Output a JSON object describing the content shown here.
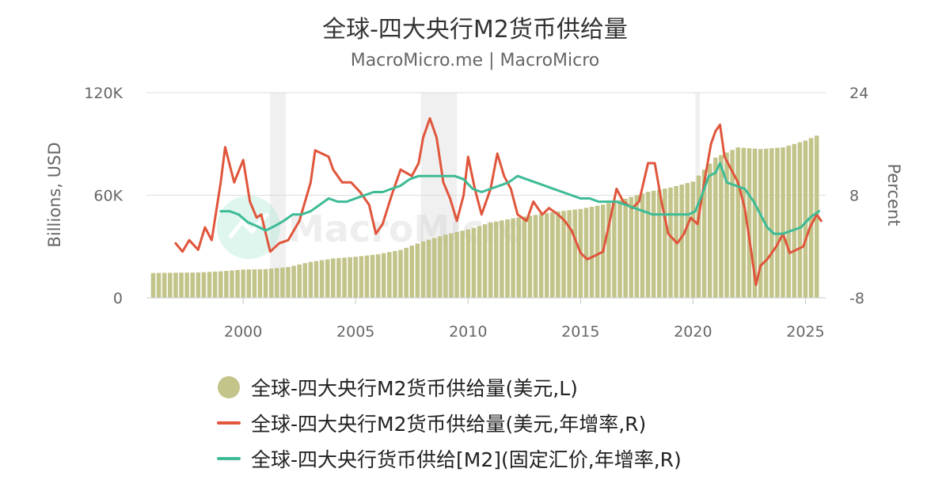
{
  "header": {
    "title": "全球-四大央行M2货币供给量",
    "subtitle": "MacroMicro.me | MacroMicro"
  },
  "watermark": "MacroMicro",
  "colors": {
    "bars": "#c2c48a",
    "usd_yoy": "#e0553b",
    "fixed_fx_yoy": "#3dbb96",
    "recession_band": "#f0f0f0",
    "grid": "#dddddd",
    "axis_text": "#666666"
  },
  "chart_data": {
    "type": "bar+line",
    "x_range": [
      1995.7,
      2025.9
    ],
    "x_ticks": [
      "2000",
      "2005",
      "2010",
      "2015",
      "2020",
      "2025"
    ],
    "left_axis": {
      "label": "Billions, USD",
      "ticks": [
        "120K",
        "60K",
        "0"
      ],
      "ylim": [
        0,
        120000
      ]
    },
    "right_axis": {
      "label": "Percent",
      "ticks": [
        "24",
        "8",
        "-8"
      ],
      "ylim": [
        -8,
        24
      ]
    },
    "grid": true,
    "legend_position": "bottom",
    "recession_bands": [
      [
        2001.2,
        2001.9
      ],
      [
        2007.9,
        2009.5
      ],
      [
        2020.1,
        2020.3
      ]
    ],
    "series": [
      {
        "name": "全球-四大央行M2货币供给量(美元,L)",
        "kind": "bar",
        "axis": "left",
        "points": [
          [
            1996.0,
            14500
          ],
          [
            1997.0,
            14700
          ],
          [
            1998.0,
            14800
          ],
          [
            1999.0,
            15500
          ],
          [
            2000.0,
            16500
          ],
          [
            2001.0,
            16800
          ],
          [
            2002.0,
            18000
          ],
          [
            2003.0,
            21000
          ],
          [
            2004.0,
            23000
          ],
          [
            2005.0,
            24000
          ],
          [
            2006.0,
            25500
          ],
          [
            2007.0,
            28000
          ],
          [
            2008.0,
            33000
          ],
          [
            2009.0,
            37000
          ],
          [
            2010.0,
            40000
          ],
          [
            2011.0,
            44000
          ],
          [
            2012.0,
            46500
          ],
          [
            2013.0,
            48500
          ],
          [
            2014.0,
            50500
          ],
          [
            2015.0,
            52000
          ],
          [
            2016.0,
            54500
          ],
          [
            2017.0,
            58000
          ],
          [
            2018.0,
            62000
          ],
          [
            2019.0,
            64500
          ],
          [
            2020.0,
            68000
          ],
          [
            2021.0,
            82000
          ],
          [
            2022.0,
            88000
          ],
          [
            2023.0,
            87000
          ],
          [
            2024.0,
            88000
          ],
          [
            2025.0,
            92000
          ],
          [
            2025.7,
            96000
          ]
        ]
      },
      {
        "name": "全球-四大央行M2货币供给量(美元,年增率,R)",
        "kind": "line",
        "axis": "right",
        "points": [
          [
            1997.0,
            0.5
          ],
          [
            1997.3,
            -0.8
          ],
          [
            1997.6,
            1
          ],
          [
            1998.0,
            -0.5
          ],
          [
            1998.3,
            3
          ],
          [
            1998.6,
            1
          ],
          [
            1999.0,
            10
          ],
          [
            1999.2,
            15.5
          ],
          [
            1999.6,
            10
          ],
          [
            2000.0,
            13.5
          ],
          [
            2000.3,
            7
          ],
          [
            2000.6,
            4.5
          ],
          [
            2000.8,
            5
          ],
          [
            2001.2,
            -0.8
          ],
          [
            2001.6,
            0.5
          ],
          [
            2002.0,
            1
          ],
          [
            2002.5,
            4
          ],
          [
            2003.0,
            10
          ],
          [
            2003.2,
            15
          ],
          [
            2003.5,
            14.5
          ],
          [
            2003.8,
            14
          ],
          [
            2004.0,
            12
          ],
          [
            2004.4,
            10
          ],
          [
            2004.8,
            10
          ],
          [
            2005.2,
            8.5
          ],
          [
            2005.6,
            6.5
          ],
          [
            2005.9,
            2
          ],
          [
            2006.2,
            3.5
          ],
          [
            2006.6,
            8
          ],
          [
            2007.0,
            12
          ],
          [
            2007.5,
            11
          ],
          [
            2007.8,
            13
          ],
          [
            2008.0,
            17
          ],
          [
            2008.3,
            20
          ],
          [
            2008.6,
            17
          ],
          [
            2008.9,
            10
          ],
          [
            2009.2,
            7.5
          ],
          [
            2009.5,
            4
          ],
          [
            2009.8,
            8
          ],
          [
            2010.0,
            14
          ],
          [
            2010.3,
            9
          ],
          [
            2010.6,
            5
          ],
          [
            2011.0,
            9
          ],
          [
            2011.3,
            14.5
          ],
          [
            2011.6,
            11
          ],
          [
            2011.9,
            9
          ],
          [
            2012.2,
            5
          ],
          [
            2012.6,
            4
          ],
          [
            2012.9,
            7
          ],
          [
            2013.3,
            5
          ],
          [
            2013.6,
            6
          ],
          [
            2014.0,
            5
          ],
          [
            2014.3,
            4
          ],
          [
            2014.6,
            2.5
          ],
          [
            2015.0,
            -1
          ],
          [
            2015.3,
            -2
          ],
          [
            2015.6,
            -1.5
          ],
          [
            2016.0,
            -0.8
          ],
          [
            2016.3,
            4
          ],
          [
            2016.6,
            9
          ],
          [
            2016.9,
            7
          ],
          [
            2017.3,
            6
          ],
          [
            2017.6,
            7
          ],
          [
            2018.0,
            13
          ],
          [
            2018.3,
            13
          ],
          [
            2018.6,
            7
          ],
          [
            2018.9,
            2
          ],
          [
            2019.3,
            0.5
          ],
          [
            2019.6,
            2
          ],
          [
            2019.9,
            4.5
          ],
          [
            2020.2,
            3.5
          ],
          [
            2020.5,
            10
          ],
          [
            2020.8,
            16
          ],
          [
            2021.0,
            18
          ],
          [
            2021.2,
            19
          ],
          [
            2021.4,
            14
          ],
          [
            2021.7,
            12
          ],
          [
            2022.0,
            10
          ],
          [
            2022.3,
            6
          ],
          [
            2022.6,
            -1
          ],
          [
            2022.8,
            -6
          ],
          [
            2023.0,
            -3
          ],
          [
            2023.3,
            -2
          ],
          [
            2023.7,
            0
          ],
          [
            2024.0,
            2
          ],
          [
            2024.3,
            -1
          ],
          [
            2024.6,
            -0.5
          ],
          [
            2024.9,
            0
          ],
          [
            2025.2,
            3
          ],
          [
            2025.5,
            5
          ],
          [
            2025.7,
            4
          ]
        ]
      },
      {
        "name": "全球-四大央行货币供给[M2](固定汇价,年增率,R)",
        "kind": "line",
        "axis": "right",
        "points": [
          [
            1999.0,
            5.5
          ],
          [
            1999.4,
            5.5
          ],
          [
            1999.8,
            5
          ],
          [
            2000.2,
            3.8
          ],
          [
            2000.6,
            3.2
          ],
          [
            2001.0,
            2.5
          ],
          [
            2001.4,
            3.2
          ],
          [
            2001.8,
            4
          ],
          [
            2002.2,
            5
          ],
          [
            2002.6,
            5
          ],
          [
            2003.0,
            5.5
          ],
          [
            2003.4,
            6.5
          ],
          [
            2003.8,
            7.5
          ],
          [
            2004.2,
            7
          ],
          [
            2004.6,
            7
          ],
          [
            2005.0,
            7.5
          ],
          [
            2005.4,
            8
          ],
          [
            2005.8,
            8.5
          ],
          [
            2006.2,
            8.5
          ],
          [
            2006.6,
            9
          ],
          [
            2007.0,
            9.5
          ],
          [
            2007.4,
            10.5
          ],
          [
            2007.8,
            11
          ],
          [
            2008.2,
            11
          ],
          [
            2008.6,
            11
          ],
          [
            2009.0,
            11
          ],
          [
            2009.4,
            11
          ],
          [
            2009.8,
            10.5
          ],
          [
            2010.2,
            9
          ],
          [
            2010.6,
            8.5
          ],
          [
            2011.0,
            9
          ],
          [
            2011.4,
            9.5
          ],
          [
            2011.8,
            10
          ],
          [
            2012.2,
            11
          ],
          [
            2012.6,
            10.5
          ],
          [
            2013.0,
            10
          ],
          [
            2013.4,
            9.5
          ],
          [
            2013.8,
            9
          ],
          [
            2014.2,
            8.5
          ],
          [
            2014.6,
            8
          ],
          [
            2015.0,
            7.5
          ],
          [
            2015.4,
            7.5
          ],
          [
            2015.8,
            7
          ],
          [
            2016.2,
            7
          ],
          [
            2016.6,
            7
          ],
          [
            2017.0,
            6.5
          ],
          [
            2017.4,
            6
          ],
          [
            2017.8,
            5.5
          ],
          [
            2018.2,
            5
          ],
          [
            2018.6,
            5
          ],
          [
            2019.0,
            5
          ],
          [
            2019.4,
            5
          ],
          [
            2019.8,
            5
          ],
          [
            2020.1,
            5.5
          ],
          [
            2020.4,
            8
          ],
          [
            2020.7,
            11
          ],
          [
            2021.0,
            11.5
          ],
          [
            2021.2,
            13
          ],
          [
            2021.5,
            10
          ],
          [
            2021.9,
            9.5
          ],
          [
            2022.3,
            9
          ],
          [
            2022.7,
            7
          ],
          [
            2023.0,
            5
          ],
          [
            2023.3,
            3
          ],
          [
            2023.6,
            2
          ],
          [
            2024.0,
            2
          ],
          [
            2024.4,
            2.5
          ],
          [
            2024.8,
            3
          ],
          [
            2025.2,
            4.5
          ],
          [
            2025.6,
            5.5
          ]
        ]
      }
    ]
  }
}
